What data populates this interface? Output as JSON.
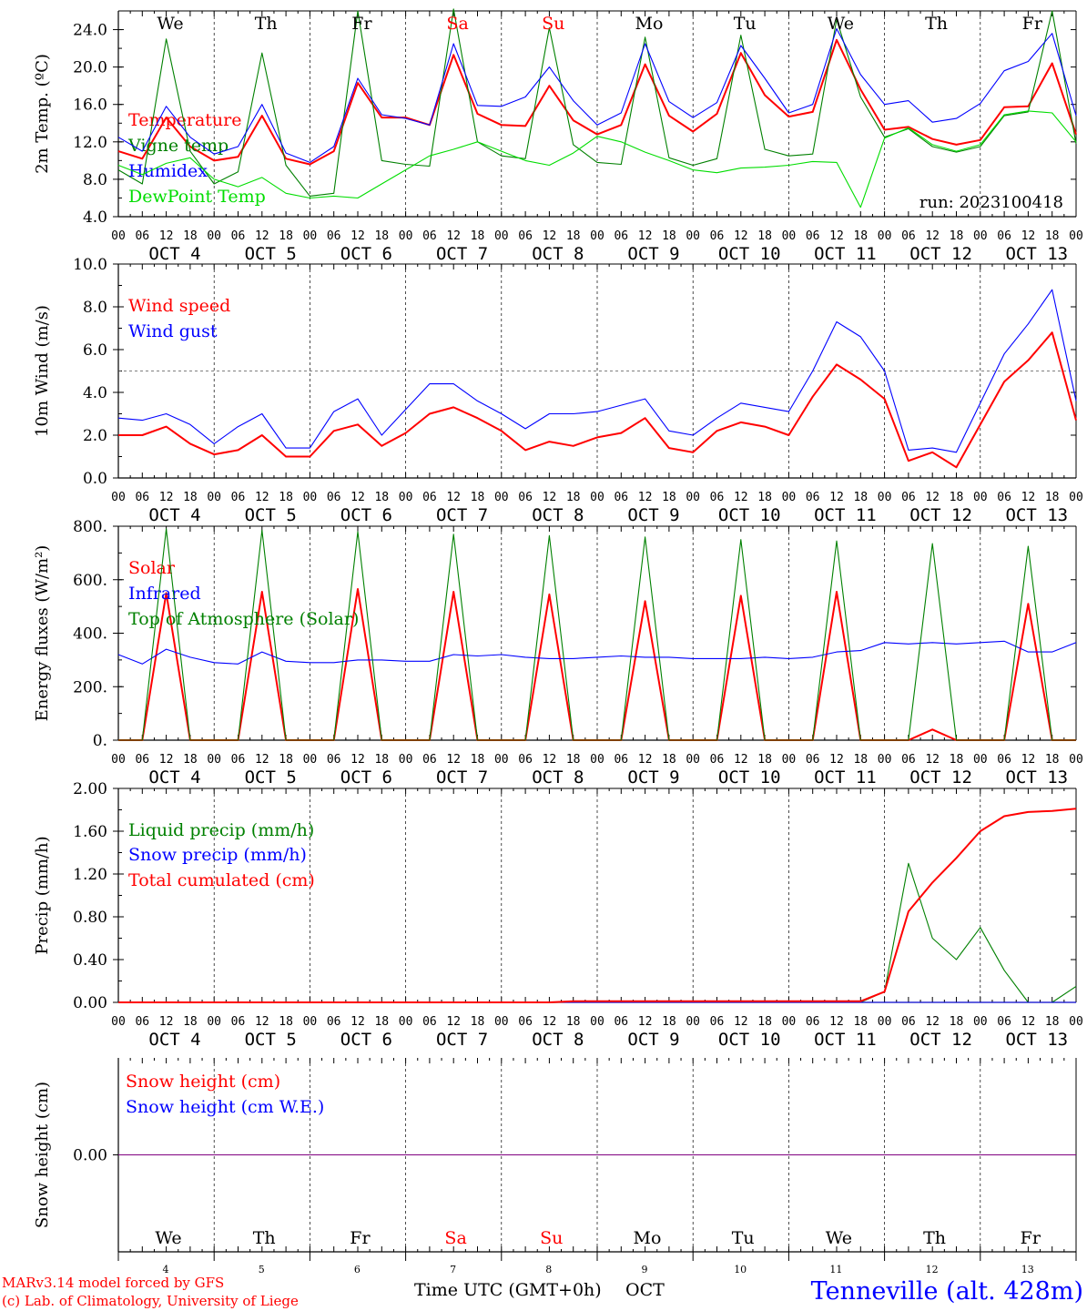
{
  "run_label": "run: 2023100418",
  "footer": {
    "model_line1": "MARv3.14 model forced by GFS",
    "model_line2": "(c) Lab. of Climatology, University of Liege",
    "x_title": "Time UTC (GMT+0h)",
    "month": "OCT",
    "station": "Tenneville (alt. 428m)"
  },
  "days": [
    {
      "abbr": "We",
      "num": "4",
      "date": "OCT  4",
      "weekend": false
    },
    {
      "abbr": "Th",
      "num": "5",
      "date": "OCT  5",
      "weekend": false
    },
    {
      "abbr": "Fr",
      "num": "6",
      "date": "OCT  6",
      "weekend": false
    },
    {
      "abbr": "Sa",
      "num": "7",
      "date": "OCT  7",
      "weekend": true
    },
    {
      "abbr": "Su",
      "num": "8",
      "date": "OCT  8",
      "weekend": true
    },
    {
      "abbr": "Mo",
      "num": "9",
      "date": "OCT  9",
      "weekend": false
    },
    {
      "abbr": "Tu",
      "num": "10",
      "date": "OCT 10",
      "weekend": false
    },
    {
      "abbr": "We",
      "num": "11",
      "date": "OCT 11",
      "weekend": false
    },
    {
      "abbr": "Th",
      "num": "12",
      "date": "OCT 12",
      "weekend": false
    },
    {
      "abbr": "Fr",
      "num": "13",
      "date": "OCT 13",
      "weekend": false
    }
  ],
  "hour_ticks": [
    "00",
    "06",
    "12",
    "18"
  ],
  "colors": {
    "red": "#ff0000",
    "blue": "#0000ff",
    "green": "#008000",
    "lightgreen": "#00dd00",
    "purple": "#800080",
    "weekend": "#ff0000",
    "weekday": "#000000"
  },
  "chart_data": [
    {
      "type": "line",
      "ylabel": "2m Temp. (ºC)",
      "ylim": [
        4,
        26
      ],
      "yticks": [
        "4.0",
        "8.0",
        "12.0",
        "16.0",
        "20.0",
        "24.0"
      ],
      "x": "hours since OCT 4 00 UTC, every 6 h",
      "hours": [
        0,
        6,
        12,
        18,
        24,
        30,
        36,
        42,
        48,
        54,
        60,
        66,
        72,
        78,
        84,
        90,
        96,
        102,
        108,
        114,
        120,
        126,
        132,
        138,
        144,
        150,
        156,
        162,
        168,
        174,
        180,
        186,
        192,
        198,
        204,
        210,
        216,
        222,
        228,
        234,
        240
      ],
      "series": [
        {
          "name": "Temperature",
          "color": "#ff0000",
          "values": [
            11.0,
            10.2,
            14.6,
            11.5,
            10.0,
            10.4,
            14.8,
            10.2,
            9.6,
            11.0,
            18.3,
            14.6,
            14.6,
            13.8,
            21.3,
            15.0,
            13.8,
            13.7,
            18.0,
            14.3,
            12.8,
            13.8,
            20.3,
            14.8,
            13.1,
            15.0,
            21.5,
            17.0,
            14.7,
            15.2,
            22.9,
            17.6,
            13.3,
            13.6,
            12.3,
            11.7,
            12.2,
            15.7,
            15.8,
            20.4,
            12.8
          ]
        },
        {
          "name": "Vigne temp",
          "color": "#008000",
          "values": [
            9.0,
            7.5,
            23.0,
            11.0,
            7.5,
            8.8,
            21.5,
            9.5,
            6.2,
            6.5,
            26.0,
            10.0,
            9.6,
            9.4,
            26.2,
            12.0,
            10.5,
            10.2,
            24.2,
            11.7,
            9.8,
            9.6,
            23.2,
            10.3,
            9.5,
            10.2,
            23.4,
            11.2,
            10.5,
            10.7,
            25.1,
            16.8,
            12.5,
            13.4,
            11.5,
            10.9,
            11.5,
            14.8,
            15.2,
            26.0,
            11.8
          ]
        },
        {
          "name": "Humidex",
          "color": "#0000ff",
          "values": [
            12.5,
            11.0,
            15.8,
            12.5,
            10.7,
            11.5,
            16.0,
            10.8,
            9.8,
            11.5,
            18.8,
            14.9,
            14.5,
            13.8,
            22.5,
            15.9,
            15.8,
            16.8,
            20.0,
            16.4,
            13.8,
            15.1,
            22.5,
            16.3,
            14.6,
            16.2,
            22.3,
            18.8,
            15.1,
            16.0,
            24.1,
            19.2,
            16.0,
            16.4,
            14.1,
            14.5,
            16.1,
            19.6,
            20.6,
            23.6,
            14.8
          ]
        },
        {
          "name": "DewPoint Temp",
          "color": "#00dd00",
          "values": [
            9.5,
            8.5,
            9.7,
            10.3,
            8.0,
            7.2,
            8.2,
            6.5,
            6.0,
            6.2,
            6.0,
            7.5,
            9.0,
            10.5,
            11.2,
            12.0,
            11.0,
            10.0,
            9.5,
            10.8,
            12.6,
            12.0,
            10.9,
            10.0,
            9.0,
            8.7,
            9.2,
            9.3,
            9.5,
            9.9,
            9.8,
            5.0,
            12.4,
            13.5,
            11.7,
            11.0,
            11.7,
            14.9,
            15.3,
            15.1,
            12.0
          ]
        }
      ]
    },
    {
      "type": "line",
      "ylabel": "10m Wind (m/s)",
      "ylim": [
        0,
        10
      ],
      "yticks": [
        "0.0",
        "2.0",
        "4.0",
        "6.0",
        "8.0",
        "10.0"
      ],
      "reference_line": 5,
      "hours": [
        0,
        6,
        12,
        18,
        24,
        30,
        36,
        42,
        48,
        54,
        60,
        66,
        72,
        78,
        84,
        90,
        96,
        102,
        108,
        114,
        120,
        126,
        132,
        138,
        144,
        150,
        156,
        162,
        168,
        174,
        180,
        186,
        192,
        198,
        204,
        210,
        216,
        222,
        228,
        234,
        240
      ],
      "series": [
        {
          "name": "Wind speed",
          "color": "#ff0000",
          "values": [
            2.0,
            2.0,
            2.4,
            1.6,
            1.1,
            1.3,
            2.0,
            1.0,
            1.0,
            2.2,
            2.5,
            1.5,
            2.1,
            3.0,
            3.3,
            2.8,
            2.2,
            1.3,
            1.7,
            1.5,
            1.9,
            2.1,
            2.8,
            1.4,
            1.2,
            2.2,
            2.6,
            2.4,
            2.0,
            3.8,
            5.3,
            4.6,
            3.7,
            0.8,
            1.2,
            0.5,
            2.5,
            4.5,
            5.5,
            6.8,
            2.7
          ]
        },
        {
          "name": "Wind gust",
          "color": "#0000ff",
          "values": [
            2.8,
            2.7,
            3.0,
            2.5,
            1.6,
            2.4,
            3.0,
            1.4,
            1.4,
            3.1,
            3.7,
            2.0,
            3.2,
            4.4,
            4.4,
            3.6,
            3.0,
            2.3,
            3.0,
            3.0,
            3.1,
            3.4,
            3.7,
            2.2,
            2.0,
            2.8,
            3.5,
            3.3,
            3.1,
            5.0,
            7.3,
            6.6,
            5.0,
            1.3,
            1.4,
            1.2,
            3.5,
            5.8,
            7.2,
            8.8,
            3.6
          ]
        }
      ]
    },
    {
      "type": "line",
      "ylabel": "Energy fluxes (W/m²)",
      "ylim": [
        0,
        800
      ],
      "yticks": [
        "0.",
        "200.",
        "400.",
        "600.",
        "800."
      ],
      "hours": [
        0,
        6,
        12,
        18,
        24,
        30,
        36,
        42,
        48,
        54,
        60,
        66,
        72,
        78,
        84,
        90,
        96,
        102,
        108,
        114,
        120,
        126,
        132,
        138,
        144,
        150,
        156,
        162,
        168,
        174,
        180,
        186,
        192,
        198,
        204,
        210,
        216,
        222,
        228,
        234,
        240
      ],
      "series": [
        {
          "name": "Solar",
          "color": "#ff0000",
          "values": [
            0,
            0,
            550,
            0,
            0,
            0,
            555,
            0,
            0,
            0,
            565,
            0,
            0,
            0,
            555,
            0,
            0,
            0,
            545,
            0,
            0,
            0,
            520,
            0,
            0,
            0,
            540,
            0,
            0,
            0,
            555,
            0,
            0,
            0,
            40,
            0,
            0,
            0,
            510,
            0,
            0
          ]
        },
        {
          "name": "Infrared",
          "color": "#0000ff",
          "values": [
            320,
            285,
            340,
            310,
            290,
            285,
            330,
            295,
            290,
            290,
            300,
            300,
            295,
            295,
            320,
            315,
            320,
            310,
            305,
            305,
            310,
            315,
            310,
            310,
            305,
            305,
            305,
            310,
            305,
            310,
            330,
            335,
            365,
            360,
            365,
            360,
            365,
            370,
            330,
            330,
            365
          ]
        },
        {
          "name": "Top of Atmosphere (Solar)",
          "color": "#008000",
          "values": [
            0,
            0,
            790,
            0,
            0,
            0,
            785,
            0,
            0,
            0,
            780,
            0,
            0,
            0,
            770,
            0,
            0,
            0,
            765,
            0,
            0,
            0,
            760,
            0,
            0,
            0,
            750,
            0,
            0,
            0,
            745,
            0,
            0,
            0,
            735,
            0,
            0,
            0,
            725,
            0,
            0
          ]
        }
      ]
    },
    {
      "type": "line",
      "ylabel": "Precip (mm/h)",
      "ylim": [
        0,
        2
      ],
      "yticks": [
        "0.00",
        "0.40",
        "0.80",
        "1.20",
        "1.60",
        "2.00"
      ],
      "hours": [
        0,
        6,
        12,
        18,
        24,
        30,
        36,
        42,
        48,
        54,
        60,
        66,
        72,
        78,
        84,
        90,
        96,
        102,
        108,
        114,
        120,
        126,
        132,
        138,
        144,
        150,
        156,
        162,
        168,
        174,
        180,
        186,
        192,
        198,
        204,
        210,
        216,
        222,
        228,
        234,
        240
      ],
      "series": [
        {
          "name": "Liquid precip (mm/h)",
          "color": "#008000",
          "values": [
            0,
            0,
            0,
            0,
            0,
            0,
            0,
            0,
            0,
            0,
            0,
            0,
            0,
            0,
            0,
            0,
            0,
            0,
            0,
            0,
            0,
            0,
            0,
            0,
            0,
            0,
            0,
            0,
            0,
            0,
            0,
            0,
            0.1,
            1.3,
            0.6,
            0.4,
            0.7,
            0.3,
            0,
            0,
            0.15
          ]
        },
        {
          "name": "Snow precip (mm/h)",
          "color": "#0000ff",
          "values": [
            0,
            0,
            0,
            0,
            0,
            0,
            0,
            0,
            0,
            0,
            0,
            0,
            0,
            0,
            0,
            0,
            0,
            0,
            0,
            0,
            0,
            0,
            0,
            0,
            0,
            0,
            0,
            0,
            0,
            0,
            0,
            0,
            0,
            0,
            0,
            0,
            0,
            0,
            0,
            0,
            0
          ]
        },
        {
          "name": "Total cumulated (cm)",
          "color": "#ff0000",
          "values": [
            0,
            0,
            0,
            0,
            0,
            0,
            0,
            0,
            0,
            0,
            0,
            0,
            0,
            0,
            0,
            0,
            0,
            0,
            0,
            0.01,
            0.01,
            0.01,
            0.01,
            0.01,
            0.01,
            0.01,
            0.01,
            0.01,
            0.01,
            0.01,
            0.01,
            0.01,
            0.1,
            0.85,
            1.12,
            1.35,
            1.6,
            1.74,
            1.78,
            1.79,
            1.81
          ]
        }
      ]
    },
    {
      "type": "line",
      "ylabel": "Snow height (cm)",
      "yticks": [
        "0.00"
      ],
      "series": [
        {
          "name": "Snow height (cm)",
          "color": "#ff0000",
          "values": [
            0,
            0
          ]
        },
        {
          "name": "Snow height (cm W.E.)",
          "color": "#0000ff",
          "values": [
            0,
            0
          ]
        }
      ]
    }
  ]
}
